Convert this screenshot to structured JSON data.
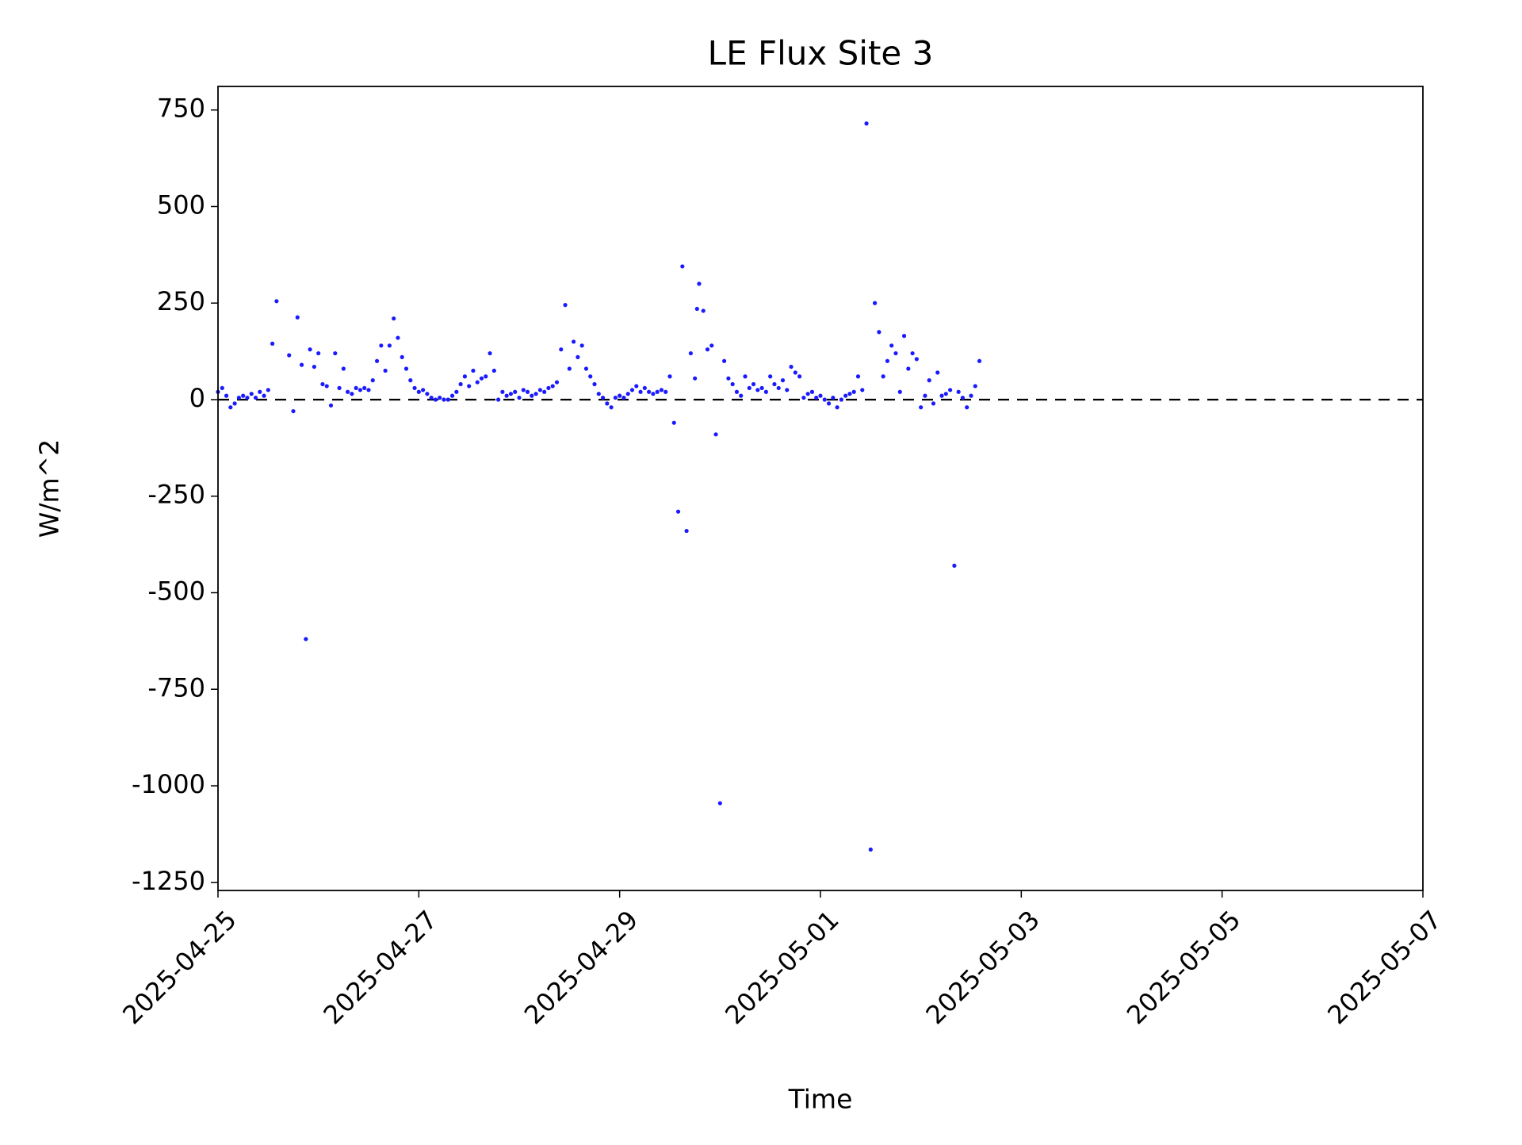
{
  "chart_data": {
    "type": "scatter",
    "title": "LE Flux Site 3",
    "x_label": "Time",
    "y_label": "W/m^2",
    "color": "#1a1aff",
    "xlim": [
      "2025-04-25",
      "2025-05-07"
    ],
    "xticks": [
      "2025-04-25",
      "2025-04-27",
      "2025-04-29",
      "2025-05-01",
      "2025-05-03",
      "2025-05-05",
      "2025-05-07"
    ],
    "ylim": [
      -1271,
      811
    ],
    "yticks": [
      750,
      500,
      250,
      0,
      -250,
      -500,
      -750,
      -1000,
      -1250
    ],
    "x": [
      "2025-04-25T00:00",
      "2025-04-25T01:00",
      "2025-04-25T02:00",
      "2025-04-25T03:00",
      "2025-04-25T04:00",
      "2025-04-25T05:00",
      "2025-04-25T06:00",
      "2025-04-25T07:00",
      "2025-04-25T08:00",
      "2025-04-25T09:00",
      "2025-04-25T10:00",
      "2025-04-25T11:00",
      "2025-04-25T12:00",
      "2025-04-25T13:00",
      "2025-04-25T14:00",
      "2025-04-25T17:00",
      "2025-04-25T18:00",
      "2025-04-25T19:00",
      "2025-04-25T20:00",
      "2025-04-25T21:00",
      "2025-04-25T22:00",
      "2025-04-25T23:00",
      "2025-04-26T00:00",
      "2025-04-26T01:00",
      "2025-04-26T02:00",
      "2025-04-26T03:00",
      "2025-04-26T04:00",
      "2025-04-26T05:00",
      "2025-04-26T06:00",
      "2025-04-26T07:00",
      "2025-04-26T08:00",
      "2025-04-26T09:00",
      "2025-04-26T10:00",
      "2025-04-26T11:00",
      "2025-04-26T12:00",
      "2025-04-26T13:00",
      "2025-04-26T14:00",
      "2025-04-26T15:00",
      "2025-04-26T16:00",
      "2025-04-26T17:00",
      "2025-04-26T18:00",
      "2025-04-26T19:00",
      "2025-04-26T20:00",
      "2025-04-26T21:00",
      "2025-04-26T22:00",
      "2025-04-26T23:00",
      "2025-04-27T00:00",
      "2025-04-27T01:00",
      "2025-04-27T02:00",
      "2025-04-27T03:00",
      "2025-04-27T04:00",
      "2025-04-27T05:00",
      "2025-04-27T06:00",
      "2025-04-27T07:00",
      "2025-04-27T08:00",
      "2025-04-27T09:00",
      "2025-04-27T10:00",
      "2025-04-27T11:00",
      "2025-04-27T12:00",
      "2025-04-27T13:00",
      "2025-04-27T14:00",
      "2025-04-27T15:00",
      "2025-04-27T16:00",
      "2025-04-27T17:00",
      "2025-04-27T18:00",
      "2025-04-27T19:00",
      "2025-04-27T20:00",
      "2025-04-27T21:00",
      "2025-04-27T22:00",
      "2025-04-27T23:00",
      "2025-04-28T00:00",
      "2025-04-28T01:00",
      "2025-04-28T02:00",
      "2025-04-28T03:00",
      "2025-04-28T04:00",
      "2025-04-28T05:00",
      "2025-04-28T06:00",
      "2025-04-28T07:00",
      "2025-04-28T08:00",
      "2025-04-28T09:00",
      "2025-04-28T10:00",
      "2025-04-28T11:00",
      "2025-04-28T12:00",
      "2025-04-28T13:00",
      "2025-04-28T14:00",
      "2025-04-28T15:00",
      "2025-04-28T16:00",
      "2025-04-28T17:00",
      "2025-04-28T18:00",
      "2025-04-28T19:00",
      "2025-04-28T20:00",
      "2025-04-28T21:00",
      "2025-04-28T22:00",
      "2025-04-28T23:00",
      "2025-04-29T00:00",
      "2025-04-29T01:00",
      "2025-04-29T02:00",
      "2025-04-29T03:00",
      "2025-04-29T04:00",
      "2025-04-29T05:00",
      "2025-04-29T06:00",
      "2025-04-29T07:00",
      "2025-04-29T08:00",
      "2025-04-29T09:00",
      "2025-04-29T10:00",
      "2025-04-29T11:00",
      "2025-04-29T12:00",
      "2025-04-29T13:00",
      "2025-04-29T14:00",
      "2025-04-29T15:00",
      "2025-04-29T16:00",
      "2025-04-29T17:00",
      "2025-04-29T18:00",
      "2025-04-29T18:30",
      "2025-04-29T19:00",
      "2025-04-29T20:00",
      "2025-04-29T21:00",
      "2025-04-29T22:00",
      "2025-04-29T23:00",
      "2025-04-30T00:00",
      "2025-04-30T01:00",
      "2025-04-30T02:00",
      "2025-04-30T03:00",
      "2025-04-30T04:00",
      "2025-04-30T05:00",
      "2025-04-30T06:00",
      "2025-04-30T07:00",
      "2025-04-30T08:00",
      "2025-04-30T09:00",
      "2025-04-30T10:00",
      "2025-04-30T11:00",
      "2025-04-30T12:00",
      "2025-04-30T13:00",
      "2025-04-30T14:00",
      "2025-04-30T15:00",
      "2025-04-30T16:00",
      "2025-04-30T17:00",
      "2025-04-30T18:00",
      "2025-04-30T19:00",
      "2025-04-30T20:00",
      "2025-04-30T21:00",
      "2025-04-30T22:00",
      "2025-04-30T23:00",
      "2025-05-01T00:00",
      "2025-05-01T01:00",
      "2025-05-01T02:00",
      "2025-05-01T03:00",
      "2025-05-01T04:00",
      "2025-05-01T05:00",
      "2025-05-01T06:00",
      "2025-05-01T07:00",
      "2025-05-01T08:00",
      "2025-05-01T09:00",
      "2025-05-01T10:00",
      "2025-05-01T11:00",
      "2025-05-01T12:00",
      "2025-05-01T13:00",
      "2025-05-01T14:00",
      "2025-05-01T15:00",
      "2025-05-01T16:00",
      "2025-05-01T17:00",
      "2025-05-01T18:00",
      "2025-05-01T19:00",
      "2025-05-01T20:00",
      "2025-05-01T21:00",
      "2025-05-01T22:00",
      "2025-05-01T23:00",
      "2025-05-02T00:00",
      "2025-05-02T01:00",
      "2025-05-02T02:00",
      "2025-05-02T03:00",
      "2025-05-02T04:00",
      "2025-05-02T05:00",
      "2025-05-02T06:00",
      "2025-05-02T07:00",
      "2025-05-02T08:00",
      "2025-05-02T09:00",
      "2025-05-02T10:00",
      "2025-05-02T11:00",
      "2025-05-02T12:00",
      "2025-05-02T13:00",
      "2025-05-02T14:00"
    ],
    "values": [
      20,
      30,
      10,
      -20,
      -10,
      5,
      10,
      5,
      15,
      5,
      20,
      10,
      25,
      145,
      255,
      115,
      -30,
      213,
      90,
      -620,
      130,
      85,
      120,
      40,
      35,
      -15,
      120,
      30,
      80,
      20,
      15,
      30,
      25,
      30,
      25,
      50,
      100,
      140,
      75,
      140,
      210,
      160,
      110,
      80,
      50,
      30,
      20,
      25,
      15,
      5,
      0,
      5,
      0,
      0,
      10,
      20,
      40,
      60,
      35,
      75,
      45,
      55,
      60,
      120,
      75,
      0,
      20,
      10,
      15,
      20,
      5,
      25,
      20,
      10,
      15,
      25,
      20,
      30,
      35,
      45,
      130,
      245,
      80,
      150,
      110,
      140,
      80,
      60,
      40,
      15,
      5,
      -10,
      -20,
      5,
      10,
      5,
      15,
      25,
      35,
      20,
      30,
      20,
      15,
      20,
      25,
      20,
      60,
      -60,
      -290,
      345,
      -340,
      120,
      55,
      235,
      300,
      230,
      130,
      140,
      -90,
      -1045,
      100,
      55,
      40,
      20,
      10,
      60,
      30,
      40,
      25,
      30,
      20,
      60,
      40,
      30,
      50,
      25,
      85,
      70,
      60,
      5,
      15,
      20,
      5,
      10,
      0,
      -10,
      5,
      -20,
      0,
      10,
      15,
      20,
      60,
      25,
      715,
      -1165,
      250,
      175,
      60,
      100,
      140,
      120,
      20,
      165,
      80,
      120,
      105,
      -20,
      10,
      50,
      -10,
      70,
      10,
      15,
      25,
      -430,
      20,
      5,
      -20,
      10,
      35,
      100
    ]
  }
}
